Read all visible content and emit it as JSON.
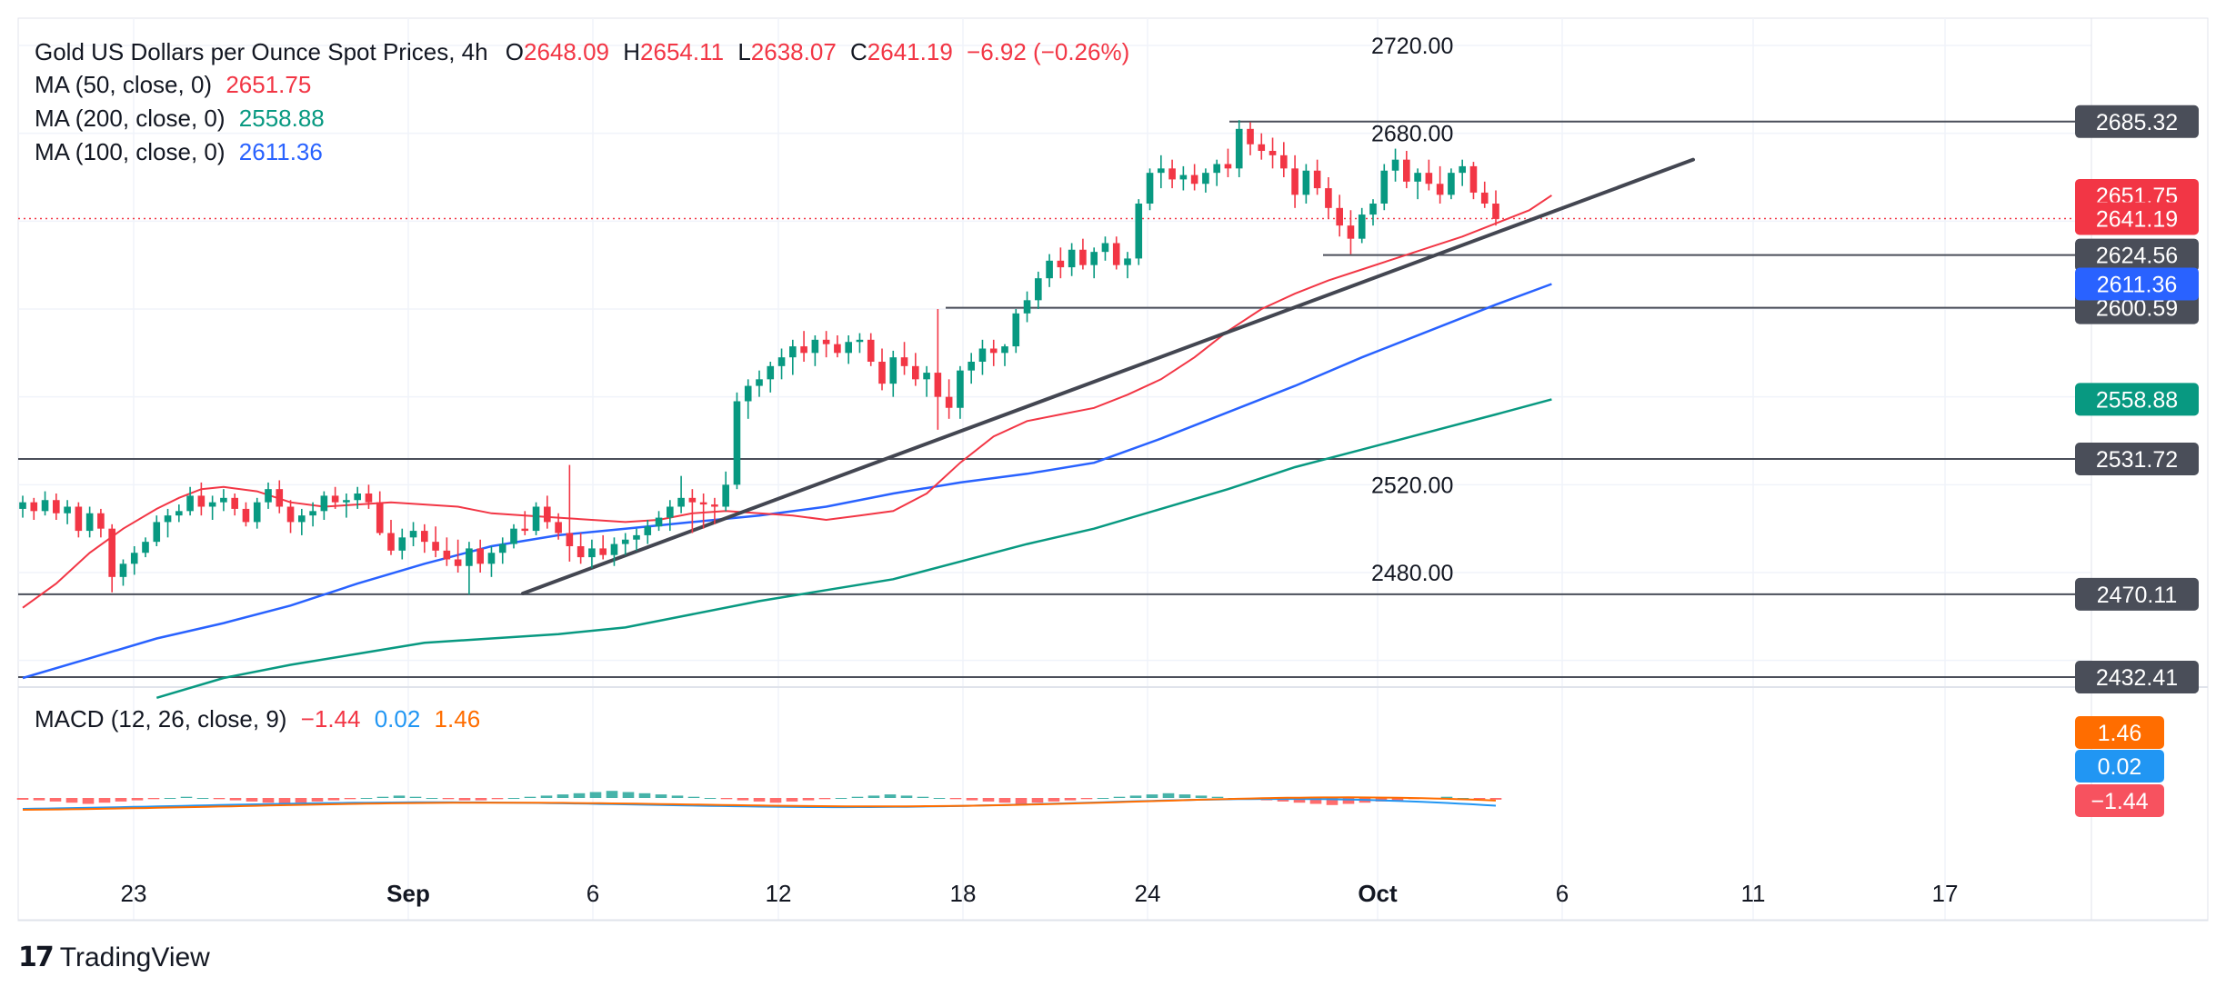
{
  "legend": {
    "title": "Gold US Dollars per Ounce Spot Prices, 4h",
    "open_label": "O",
    "open": "2648.09",
    "high_label": "H",
    "high": "2654.11",
    "low_label": "L",
    "low": "2638.07",
    "close_label": "C",
    "close": "2641.19",
    "change": "−6.92 (−0.26%)",
    "ma50_label": "MA (50, close, 0)",
    "ma50_value": "2651.75",
    "ma200_label": "MA (200, close, 0)",
    "ma200_value": "2558.88",
    "ma100_label": "MA (100, close, 0)",
    "ma100_value": "2611.36",
    "macd_label": "MACD (12, 26, close, 9)",
    "macd_hist": "−1.44",
    "macd_line": "0.02",
    "macd_signal": "1.46"
  },
  "branding": {
    "logo_text": "TradingView"
  },
  "colors": {
    "up": "#089981",
    "down": "#f23645",
    "ma50": "#f23645",
    "ma100": "#2962ff",
    "ma200": "#089981",
    "macd_line": "#2196f3",
    "signal_line": "#ff6d00",
    "level_tag": "#4a4e59"
  },
  "chart_data": {
    "type": "candlestick",
    "timeframe": "4h",
    "price_axis": {
      "ticks": [
        2720.0,
        2680.0,
        2520.0,
        2480.0
      ],
      "tick_labels": [
        "2720.00",
        "2680.00",
        "2520.00",
        "2480.00"
      ],
      "range": [
        2423,
        2725
      ]
    },
    "time_axis": {
      "labels": [
        "23",
        "Sep",
        "6",
        "12",
        "18",
        "24",
        "Oct",
        "6",
        "11",
        "17"
      ],
      "bold": [
        "Sep",
        "Oct"
      ]
    },
    "horizontal_levels": [
      2685.32,
      2624.56,
      2600.59,
      2531.72,
      2470.11,
      2432.41
    ],
    "horizontal_level_labels": [
      "2685.32",
      "2624.56",
      "2600.59",
      "2531.72",
      "2470.11",
      "2432.41"
    ],
    "trendline": {
      "from": {
        "date": "Sep 4",
        "price": 2470.5
      },
      "to": {
        "date": "Oct 9",
        "price": 2668
      }
    },
    "current_price": 2641.19,
    "current_price_label": "2641.19",
    "ma_tags": [
      {
        "name": "MA (50, close, 0)",
        "value": 2651.75,
        "label": "2651.75"
      },
      {
        "name": "MA (100, close, 0)",
        "value": 2611.36,
        "label": "2611.36"
      },
      {
        "name": "MA (200, close, 0)",
        "value": 2558.88,
        "label": "2558.88"
      }
    ],
    "ma_series": {
      "ma50": [
        [
          0,
          2464
        ],
        [
          3,
          2475
        ],
        [
          6,
          2489
        ],
        [
          9,
          2500
        ],
        [
          12,
          2509
        ],
        [
          14,
          2514
        ],
        [
          16,
          2518
        ],
        [
          18,
          2519
        ],
        [
          21,
          2517
        ],
        [
          24,
          2512
        ],
        [
          27,
          2510
        ],
        [
          30,
          2511
        ],
        [
          33,
          2512
        ],
        [
          36,
          2511
        ],
        [
          39,
          2510
        ],
        [
          42,
          2507
        ],
        [
          45,
          2506
        ],
        [
          48,
          2505
        ],
        [
          51,
          2504
        ],
        [
          54,
          2503
        ],
        [
          57,
          2504
        ],
        [
          60,
          2507
        ],
        [
          63,
          2508
        ],
        [
          66,
          2507
        ],
        [
          69,
          2506
        ],
        [
          72,
          2504
        ],
        [
          75,
          2506
        ],
        [
          78,
          2508
        ],
        [
          81,
          2516
        ],
        [
          84,
          2530
        ],
        [
          87,
          2542
        ],
        [
          90,
          2549
        ],
        [
          93,
          2552
        ],
        [
          96,
          2555
        ],
        [
          99,
          2561
        ],
        [
          102,
          2568
        ],
        [
          105,
          2578
        ],
        [
          108,
          2590
        ],
        [
          111,
          2600
        ],
        [
          114,
          2607
        ],
        [
          117,
          2613
        ],
        [
          120,
          2618
        ],
        [
          123,
          2623
        ],
        [
          126,
          2628
        ],
        [
          129,
          2633
        ],
        [
          132,
          2639
        ],
        [
          135,
          2645
        ],
        [
          137,
          2651.75
        ]
      ],
      "ma100": [
        [
          0,
          2432
        ],
        [
          6,
          2441
        ],
        [
          12,
          2450
        ],
        [
          18,
          2457
        ],
        [
          24,
          2465
        ],
        [
          30,
          2475
        ],
        [
          36,
          2484
        ],
        [
          42,
          2492
        ],
        [
          48,
          2497
        ],
        [
          54,
          2500
        ],
        [
          60,
          2503
        ],
        [
          66,
          2506
        ],
        [
          72,
          2510
        ],
        [
          78,
          2516
        ],
        [
          84,
          2521
        ],
        [
          90,
          2525
        ],
        [
          96,
          2530
        ],
        [
          102,
          2541
        ],
        [
          108,
          2553
        ],
        [
          114,
          2565
        ],
        [
          120,
          2578
        ],
        [
          126,
          2590
        ],
        [
          132,
          2602
        ],
        [
          137,
          2611.36
        ]
      ],
      "ma200": [
        [
          12,
          2423
        ],
        [
          18,
          2432
        ],
        [
          24,
          2438
        ],
        [
          30,
          2443
        ],
        [
          36,
          2448
        ],
        [
          42,
          2450
        ],
        [
          48,
          2452
        ],
        [
          54,
          2455
        ],
        [
          60,
          2461
        ],
        [
          66,
          2467
        ],
        [
          72,
          2472
        ],
        [
          78,
          2477
        ],
        [
          84,
          2485
        ],
        [
          90,
          2493
        ],
        [
          96,
          2500
        ],
        [
          102,
          2509
        ],
        [
          108,
          2518
        ],
        [
          114,
          2528
        ],
        [
          120,
          2536
        ],
        [
          126,
          2544
        ],
        [
          132,
          2552
        ],
        [
          137,
          2558.88
        ]
      ]
    },
    "candles_ohlc": [
      [
        2509,
        2515,
        2505,
        2512
      ],
      [
        2512,
        2514,
        2504,
        2508
      ],
      [
        2508,
        2517,
        2506,
        2513
      ],
      [
        2513,
        2516,
        2504,
        2507
      ],
      [
        2507,
        2513,
        2502,
        2510
      ],
      [
        2510,
        2512,
        2496,
        2499
      ],
      [
        2499,
        2510,
        2496,
        2507
      ],
      [
        2507,
        2509,
        2496,
        2500
      ],
      [
        2500,
        2502,
        2471,
        2478
      ],
      [
        2478,
        2486,
        2474,
        2484
      ],
      [
        2484,
        2492,
        2479,
        2489
      ],
      [
        2489,
        2496,
        2487,
        2494
      ],
      [
        2494,
        2506,
        2492,
        2503
      ],
      [
        2503,
        2509,
        2496,
        2506
      ],
      [
        2506,
        2511,
        2503,
        2508
      ],
      [
        2508,
        2519,
        2506,
        2515
      ],
      [
        2515,
        2521,
        2506,
        2510
      ],
      [
        2510,
        2515,
        2504,
        2512
      ],
      [
        2512,
        2518,
        2508,
        2514
      ],
      [
        2514,
        2516,
        2506,
        2509
      ],
      [
        2509,
        2512,
        2501,
        2503
      ],
      [
        2503,
        2514,
        2500,
        2512
      ],
      [
        2512,
        2521,
        2509,
        2518
      ],
      [
        2518,
        2522,
        2507,
        2510
      ],
      [
        2510,
        2513,
        2498,
        2503
      ],
      [
        2503,
        2509,
        2497,
        2506
      ],
      [
        2506,
        2512,
        2501,
        2508
      ],
      [
        2508,
        2517,
        2504,
        2515
      ],
      [
        2515,
        2519,
        2509,
        2512
      ],
      [
        2512,
        2516,
        2505,
        2513
      ],
      [
        2513,
        2519,
        2509,
        2516
      ],
      [
        2516,
        2520,
        2509,
        2512
      ],
      [
        2512,
        2517,
        2497,
        2498
      ],
      [
        2498,
        2504,
        2488,
        2490
      ],
      [
        2490,
        2500,
        2486,
        2496
      ],
      [
        2496,
        2503,
        2492,
        2499
      ],
      [
        2499,
        2502,
        2489,
        2494
      ],
      [
        2494,
        2501,
        2487,
        2490
      ],
      [
        2490,
        2496,
        2483,
        2486
      ],
      [
        2486,
        2495,
        2480,
        2483
      ],
      [
        2483,
        2494,
        2470,
        2491
      ],
      [
        2491,
        2495,
        2480,
        2484
      ],
      [
        2484,
        2492,
        2478,
        2489
      ],
      [
        2489,
        2496,
        2484,
        2493
      ],
      [
        2493,
        2502,
        2491,
        2500
      ],
      [
        2500,
        2508,
        2497,
        2499
      ],
      [
        2499,
        2512,
        2497,
        2510
      ],
      [
        2510,
        2515,
        2500,
        2503
      ],
      [
        2503,
        2507,
        2495,
        2498
      ],
      [
        2498,
        2529,
        2485,
        2492
      ],
      [
        2492,
        2498,
        2484,
        2487
      ],
      [
        2487,
        2495,
        2482,
        2491
      ],
      [
        2491,
        2497,
        2486,
        2488
      ],
      [
        2488,
        2496,
        2483,
        2493
      ],
      [
        2493,
        2498,
        2488,
        2495
      ],
      [
        2495,
        2500,
        2490,
        2497
      ],
      [
        2497,
        2504,
        2493,
        2501
      ],
      [
        2501,
        2508,
        2499,
        2505
      ],
      [
        2505,
        2513,
        2499,
        2510
      ],
      [
        2510,
        2524,
        2507,
        2514
      ],
      [
        2514,
        2518,
        2498,
        2512
      ],
      [
        2512,
        2516,
        2500,
        2511
      ],
      [
        2511,
        2514,
        2502,
        2510
      ],
      [
        2510,
        2526,
        2508,
        2520
      ],
      [
        2520,
        2562,
        2518,
        2558
      ],
      [
        2558,
        2568,
        2550,
        2565
      ],
      [
        2565,
        2572,
        2560,
        2568
      ],
      [
        2568,
        2576,
        2562,
        2574
      ],
      [
        2574,
        2582,
        2568,
        2578
      ],
      [
        2578,
        2586,
        2570,
        2583
      ],
      [
        2583,
        2590,
        2576,
        2580
      ],
      [
        2580,
        2588,
        2574,
        2586
      ],
      [
        2586,
        2590,
        2578,
        2584
      ],
      [
        2584,
        2588,
        2578,
        2580
      ],
      [
        2580,
        2588,
        2575,
        2585
      ],
      [
        2585,
        2589,
        2580,
        2586
      ],
      [
        2586,
        2589,
        2574,
        2576
      ],
      [
        2576,
        2582,
        2563,
        2566
      ],
      [
        2566,
        2581,
        2560,
        2578
      ],
      [
        2578,
        2585,
        2570,
        2574
      ],
      [
        2574,
        2580,
        2565,
        2568
      ],
      [
        2568,
        2574,
        2560,
        2571
      ],
      [
        2571,
        2600,
        2545,
        2560
      ],
      [
        2560,
        2568,
        2550,
        2555
      ],
      [
        2555,
        2574,
        2550,
        2572
      ],
      [
        2572,
        2580,
        2566,
        2576
      ],
      [
        2576,
        2586,
        2570,
        2582
      ],
      [
        2582,
        2586,
        2574,
        2580
      ],
      [
        2580,
        2584,
        2574,
        2583
      ],
      [
        2583,
        2600,
        2580,
        2598
      ],
      [
        2598,
        2608,
        2594,
        2604
      ],
      [
        2604,
        2617,
        2600,
        2614
      ],
      [
        2614,
        2625,
        2610,
        2622
      ],
      [
        2622,
        2628,
        2614,
        2619
      ],
      [
        2619,
        2630,
        2615,
        2627
      ],
      [
        2627,
        2632,
        2618,
        2620
      ],
      [
        2620,
        2628,
        2614,
        2626
      ],
      [
        2626,
        2633,
        2622,
        2630
      ],
      [
        2630,
        2633,
        2618,
        2620
      ],
      [
        2620,
        2626,
        2614,
        2623
      ],
      [
        2623,
        2650,
        2620,
        2648
      ],
      [
        2648,
        2664,
        2645,
        2662
      ],
      [
        2662,
        2670,
        2655,
        2664
      ],
      [
        2664,
        2668,
        2655,
        2659
      ],
      [
        2659,
        2665,
        2654,
        2661
      ],
      [
        2661,
        2666,
        2654,
        2657
      ],
      [
        2657,
        2664,
        2653,
        2662
      ],
      [
        2662,
        2668,
        2656,
        2666
      ],
      [
        2666,
        2673,
        2660,
        2664
      ],
      [
        2664,
        2686,
        2660,
        2682
      ],
      [
        2682,
        2685,
        2670,
        2675
      ],
      [
        2675,
        2680,
        2668,
        2672
      ],
      [
        2672,
        2678,
        2664,
        2670
      ],
      [
        2670,
        2676,
        2660,
        2664
      ],
      [
        2664,
        2670,
        2646,
        2652
      ],
      [
        2652,
        2666,
        2648,
        2663
      ],
      [
        2663,
        2668,
        2652,
        2655
      ],
      [
        2655,
        2660,
        2641,
        2646
      ],
      [
        2646,
        2652,
        2633,
        2638
      ],
      [
        2638,
        2645,
        2625,
        2632
      ],
      [
        2632,
        2646,
        2630,
        2643
      ],
      [
        2643,
        2650,
        2638,
        2648
      ],
      [
        2648,
        2666,
        2645,
        2663
      ],
      [
        2663,
        2673,
        2658,
        2668
      ],
      [
        2668,
        2672,
        2655,
        2658
      ],
      [
        2658,
        2664,
        2650,
        2662
      ],
      [
        2662,
        2668,
        2654,
        2657
      ],
      [
        2657,
        2665,
        2648,
        2652
      ],
      [
        2652,
        2664,
        2650,
        2662
      ],
      [
        2662,
        2668,
        2656,
        2665
      ],
      [
        2665,
        2667,
        2650,
        2653
      ],
      [
        2653,
        2658,
        2646,
        2648
      ],
      [
        2648,
        2654,
        2638,
        2641
      ]
    ],
    "macd": {
      "hist_sample": [
        -1.5,
        -2,
        -3,
        -4,
        -5,
        -4,
        -3,
        -2,
        -1,
        0,
        1,
        0,
        -1,
        -2,
        -3,
        -4,
        -5,
        -4,
        -3,
        -2,
        -1,
        0,
        1,
        2,
        1,
        0,
        -1,
        -2,
        -2,
        -1,
        0,
        1,
        2,
        3,
        4,
        5,
        6,
        5,
        4,
        3,
        2,
        1,
        0,
        -1,
        -2,
        -3,
        -4,
        -3,
        -2,
        -1,
        0,
        1,
        2,
        3,
        2,
        1,
        0,
        -1,
        -2,
        -3,
        -4,
        -5,
        -4,
        -3,
        -2,
        -1,
        0,
        1,
        2,
        3,
        4,
        3,
        2,
        1,
        0,
        -1,
        -2,
        -3,
        -4,
        -5,
        -6,
        -5,
        -4,
        -3,
        -2,
        -1,
        0,
        1,
        0,
        -1,
        -1.44
      ],
      "range": [
        -12,
        12
      ]
    }
  }
}
